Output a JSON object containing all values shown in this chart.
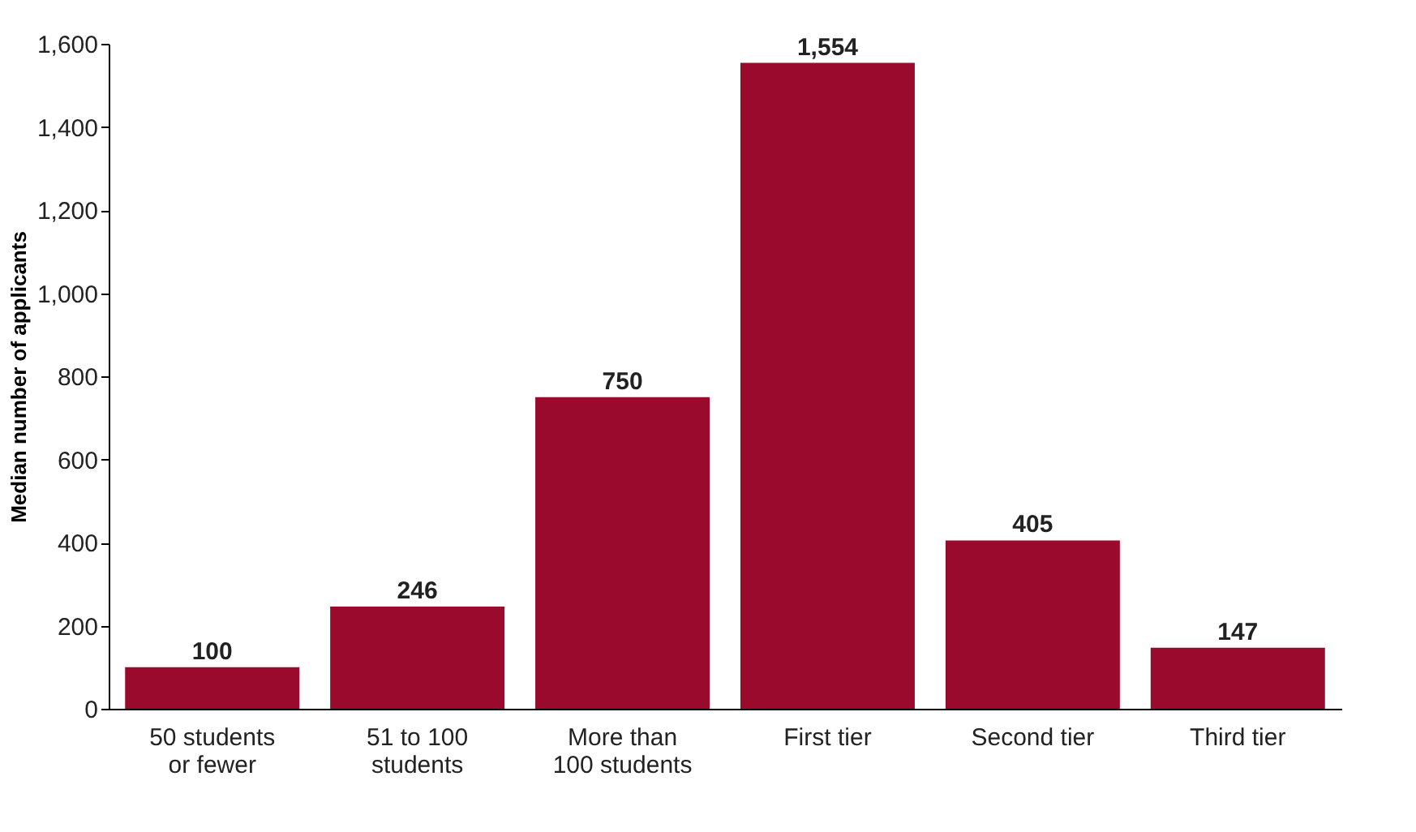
{
  "chart_data": {
    "type": "bar",
    "ylabel": "Median number of applicants",
    "categories": [
      "50 students or fewer",
      "51 to 100 students",
      "More than 100 students",
      "First tier",
      "Second tier",
      "Third tier"
    ],
    "values": [
      100,
      246,
      750,
      1554,
      405,
      147
    ],
    "color": "#990a2c",
    "ylim": [
      0,
      1600
    ],
    "yticks": [
      {
        "value": 0,
        "label": "0"
      },
      {
        "value": 200,
        "label": "200"
      },
      {
        "value": 400,
        "label": "400"
      },
      {
        "value": 600,
        "label": "600"
      },
      {
        "value": 800,
        "label": "800"
      },
      {
        "value": 1000,
        "label": "1,000"
      },
      {
        "value": 1200,
        "label": "1,200"
      },
      {
        "value": 1400,
        "label": "1,400"
      },
      {
        "value": 1600,
        "label": "1,600"
      }
    ],
    "value_labels": [
      "100",
      "246",
      "750",
      "1,554",
      "405",
      "147"
    ],
    "grid": false
  }
}
